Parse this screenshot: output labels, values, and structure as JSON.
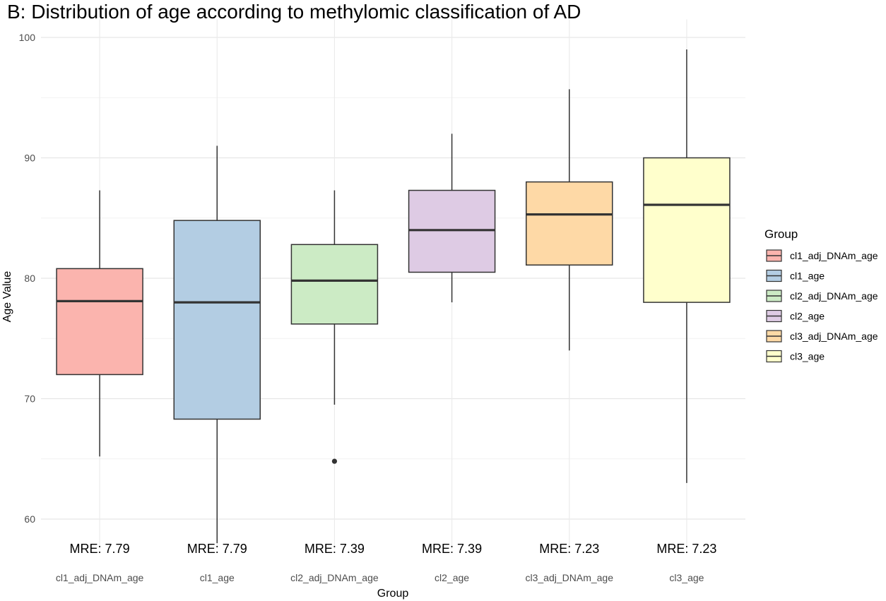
{
  "chart_data": {
    "type": "boxplot",
    "title": "B: Distribution of age according to methylomic classification of AD",
    "xlabel": "Group",
    "ylabel": "Age Value",
    "ylim": [
      57.5,
      101.5
    ],
    "yticks": [
      60,
      70,
      80,
      90,
      100
    ],
    "grid": true,
    "legend": {
      "title": "Group",
      "position": "right"
    },
    "categories": [
      "cl1_adj_DNAm_age",
      "cl1_age",
      "cl2_adj_DNAm_age",
      "cl2_age",
      "cl3_adj_DNAm_age",
      "cl3_age"
    ],
    "boxes": [
      {
        "name": "cl1_adj_DNAm_age",
        "color": "#FBB4AE",
        "whisker_low": 65.2,
        "q1": 72.0,
        "median": 78.1,
        "q3": 80.8,
        "whisker_high": 87.3,
        "outliers": []
      },
      {
        "name": "cl1_age",
        "color": "#B3CDE3",
        "whisker_low": 58.0,
        "q1": 68.3,
        "median": 78.0,
        "q3": 84.8,
        "whisker_high": 91.0,
        "outliers": []
      },
      {
        "name": "cl2_adj_DNAm_age",
        "color": "#CCEBC5",
        "whisker_low": 69.5,
        "q1": 76.2,
        "median": 79.8,
        "q3": 82.8,
        "whisker_high": 87.3,
        "outliers": [
          64.8
        ]
      },
      {
        "name": "cl2_age",
        "color": "#DECBE4",
        "whisker_low": 78.0,
        "q1": 80.5,
        "median": 84.0,
        "q3": 87.3,
        "whisker_high": 92.0,
        "outliers": []
      },
      {
        "name": "cl3_adj_DNAm_age",
        "color": "#FED9A6",
        "whisker_low": 74.0,
        "q1": 81.1,
        "median": 85.3,
        "q3": 88.0,
        "whisker_high": 95.7,
        "outliers": []
      },
      {
        "name": "cl3_age",
        "color": "#FFFFCC",
        "whisker_low": 63.0,
        "q1": 78.0,
        "median": 86.1,
        "q3": 90.0,
        "whisker_high": 99.0,
        "outliers": []
      }
    ],
    "annotations": [
      "MRE: 7.79",
      "MRE: 7.79",
      "MRE: 7.39",
      "MRE: 7.39",
      "MRE: 7.23",
      "MRE: 7.23"
    ]
  }
}
